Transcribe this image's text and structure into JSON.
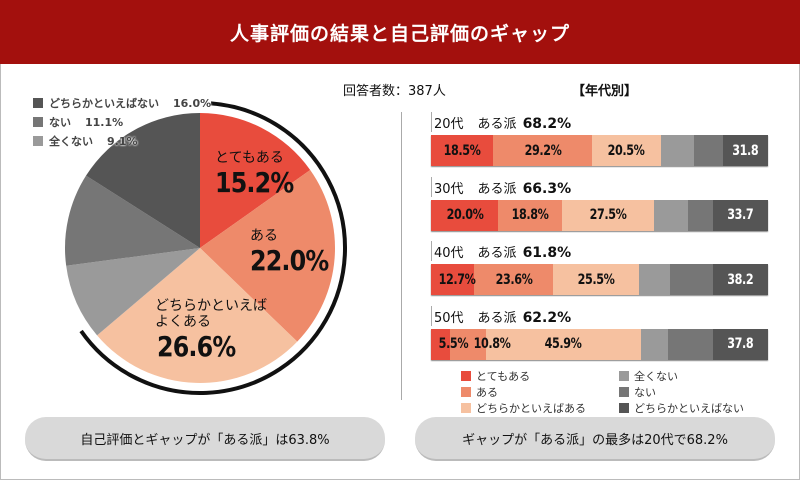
{
  "header": {
    "title": "人事評価の結果と自己評価のギャップ"
  },
  "respondents": "回答者数：387人",
  "age_section_title": "【年代別】",
  "colors": {
    "header": "#a3100d",
    "totemo_aru": "#e84c3d",
    "aru": "#ee8a6a",
    "dochira_aru": "#f6c1a0",
    "mattaku_nai": "#9a9a9a",
    "nai": "#767676",
    "dochira_nai": "#555555"
  },
  "chart_data": [
    {
      "type": "pie",
      "start": "top",
      "direction": "clockwise",
      "slices": [
        {
          "label": "とてもある",
          "value": 15.2,
          "display": "15.2%",
          "color": "#e84c3d"
        },
        {
          "label": "ある",
          "value": 22.0,
          "display": "22.0%",
          "color": "#ee8a6a"
        },
        {
          "label": "どちらかといえばよくある",
          "label_lines": [
            "どちらかといえば",
            "よくある"
          ],
          "value": 26.6,
          "display": "26.6%",
          "color": "#f6c1a0"
        },
        {
          "label": "全くない",
          "value": 9.1,
          "display": "9.1%",
          "color": "#9a9a9a"
        },
        {
          "label": "ない",
          "value": 11.1,
          "display": "11.1%",
          "color": "#767676"
        },
        {
          "label": "どちらかといえばない",
          "value": 16.0,
          "display": "16.0%",
          "color": "#555555"
        }
      ],
      "legend": [
        {
          "label": "どちらかといえばない",
          "value": "16.0%",
          "color": "#555555"
        },
        {
          "label": "ない",
          "value": "11.1%",
          "color": "#767676"
        },
        {
          "label": "全くない",
          "value": "9.1%",
          "color": "#9a9a9a"
        }
      ],
      "legend_position": "top-left",
      "highlight_arc": "positive slices (63.8%)"
    },
    {
      "type": "bar",
      "orientation": "horizontal",
      "stacked": true,
      "xlim": [
        0,
        100
      ],
      "categories": [
        "20代",
        "30代",
        "40代",
        "50代"
      ],
      "group_label": "ある派",
      "group_values": [
        "68.2%",
        "66.3%",
        "61.8%",
        "62.2%"
      ],
      "series": [
        {
          "name": "とてもある",
          "color": "#e84c3d",
          "values": [
            18.5,
            20.0,
            12.7,
            5.5
          ],
          "labels": [
            "18.5%",
            "20.0%",
            "12.7%",
            "5.5%"
          ]
        },
        {
          "name": "ある",
          "color": "#ee8a6a",
          "values": [
            29.2,
            18.8,
            23.6,
            10.8
          ],
          "labels": [
            "29.2%",
            "18.8%",
            "23.6%",
            "10.8%"
          ]
        },
        {
          "name": "どちらかといえばある",
          "color": "#f6c1a0",
          "values": [
            20.5,
            27.5,
            25.5,
            45.9
          ],
          "labels": [
            "20.5%",
            "27.5%",
            "25.5%",
            "45.9%"
          ]
        },
        {
          "name": "全くない",
          "color": "#9a9a9a",
          "values": [
            9.9,
            10.0,
            9.0,
            8.2
          ]
        },
        {
          "name": "ない",
          "color": "#767676",
          "values": [
            8.6,
            7.5,
            13.0,
            13.4
          ]
        },
        {
          "name": "どちらかといえばない",
          "color": "#555555",
          "values": [
            13.3,
            16.2,
            16.2,
            16.2
          ]
        }
      ],
      "negative_totals": [
        "31.8",
        "33.7",
        "38.2",
        "37.8"
      ],
      "legend": [
        {
          "label": "とてもある",
          "color": "#e84c3d"
        },
        {
          "label": "ある",
          "color": "#ee8a6a"
        },
        {
          "label": "どちらかといえばある",
          "color": "#f6c1a0"
        },
        {
          "label": "全くない",
          "color": "#9a9a9a"
        },
        {
          "label": "ない",
          "color": "#767676"
        },
        {
          "label": "どちらかといえばない",
          "color": "#555555"
        }
      ],
      "legend_position": "bottom"
    }
  ],
  "footer": {
    "left": "自己評価とギャップが「ある派」は63.8%",
    "right": "ギャップが「ある派」の最多は20代で68.2%"
  }
}
